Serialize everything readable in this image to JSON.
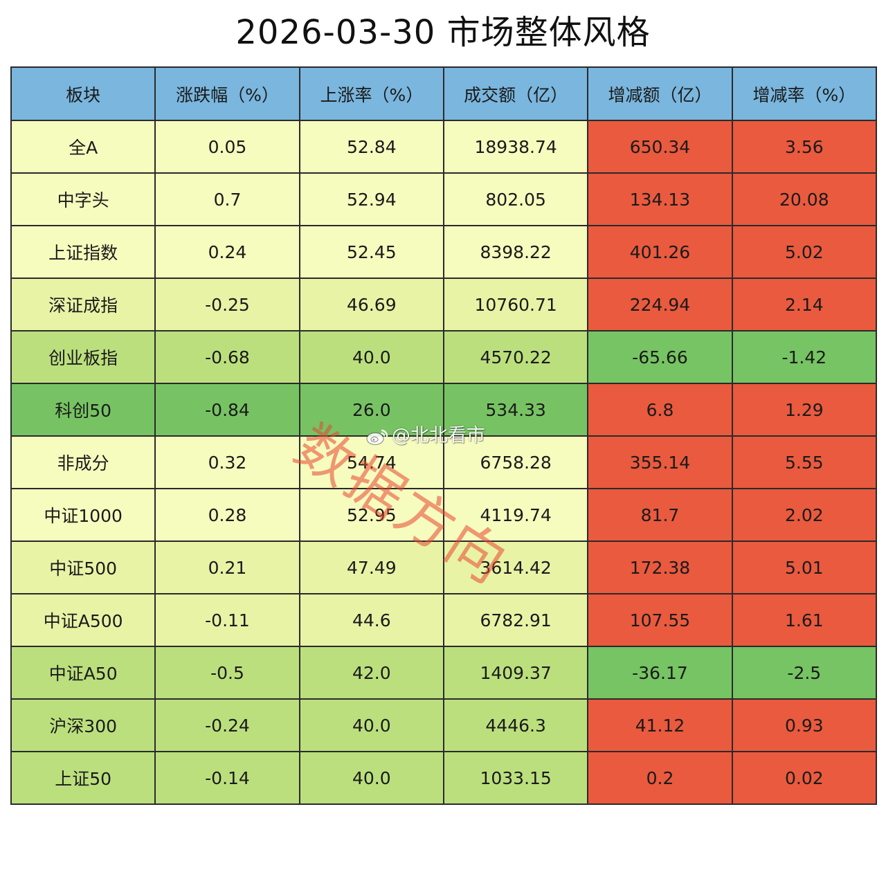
{
  "title": "2026-03-30  市场整体风格",
  "colors": {
    "header": "#7ab6dd",
    "increase_positive": "#e95a3e",
    "increase_negative": "#76c463",
    "pale_yellow": "#f6fbbe",
    "light_yellow_green": "#e8f3a6",
    "light_green": "#cde68b",
    "mid_green": "#bcdf7e",
    "strong_green": "#77c363"
  },
  "chart_data": {
    "type": "table",
    "columns": [
      "板块",
      "涨跌幅（%）",
      "上涨率（%）",
      "成交额（亿）",
      "增减额（亿）",
      "增减率（%）"
    ],
    "rows": [
      [
        "全A",
        "0.05",
        "52.84",
        "18938.74",
        "650.34",
        "3.56"
      ],
      [
        "中字头",
        "0.7",
        "52.94",
        "802.05",
        "134.13",
        "20.08"
      ],
      [
        "上证指数",
        "0.24",
        "52.45",
        "8398.22",
        "401.26",
        "5.02"
      ],
      [
        "深证成指",
        "-0.25",
        "46.69",
        "10760.71",
        "224.94",
        "2.14"
      ],
      [
        "创业板指",
        "-0.68",
        "40.0",
        "4570.22",
        "-65.66",
        "-1.42"
      ],
      [
        "科创50",
        "-0.84",
        "26.0",
        "534.33",
        "6.8",
        "1.29"
      ],
      [
        "非成分",
        "0.32",
        "54.74",
        "6758.28",
        "355.14",
        "5.55"
      ],
      [
        "中证1000",
        "0.28",
        "52.95",
        "4119.74",
        "81.7",
        "2.02"
      ],
      [
        "中证500",
        "0.21",
        "47.49",
        "3614.42",
        "172.38",
        "5.01"
      ],
      [
        "中证A500",
        "-0.11",
        "44.6",
        "6782.91",
        "107.55",
        "1.61"
      ],
      [
        "中证A50",
        "-0.5",
        "42.0",
        "1409.37",
        "-36.17",
        "-2.5"
      ],
      [
        "沪深300",
        "-0.24",
        "40.0",
        "4446.3",
        "41.12",
        "0.93"
      ],
      [
        "上证50",
        "-0.14",
        "40.0",
        "1033.15",
        "0.2",
        "0.02"
      ]
    ],
    "row_colors": [
      "pale_yellow",
      "pale_yellow",
      "pale_yellow",
      "light_yellow_green",
      "mid_green",
      "strong_green",
      "pale_yellow",
      "pale_yellow",
      "light_yellow_green",
      "light_yellow_green",
      "mid_green",
      "mid_green",
      "mid_green"
    ]
  },
  "watermark": {
    "text": "数据方向",
    "weibo_handle": "@北北看市",
    "icon": "weibo-icon"
  }
}
